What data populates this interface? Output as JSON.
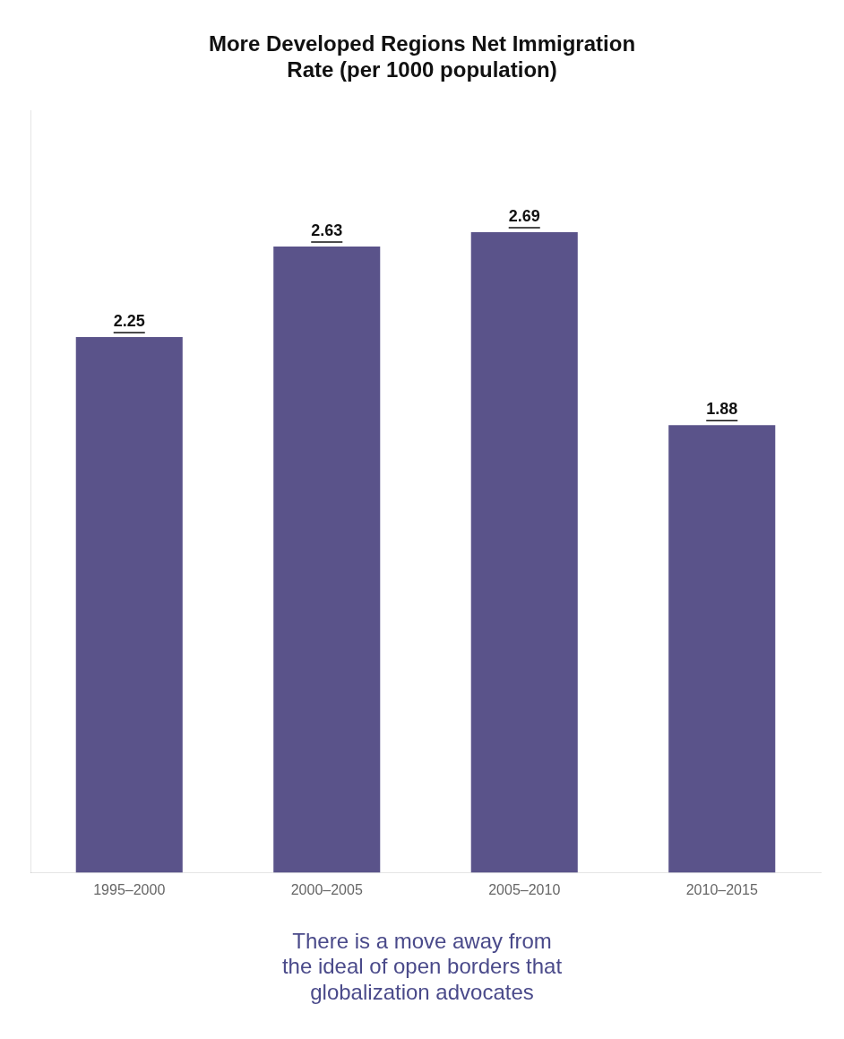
{
  "chart_data": {
    "type": "bar",
    "title": "More Developed Regions Net Immigration\nRate (per 1000 population)",
    "subtitle": "There is a move away from\nthe ideal of open borders that\nglobalization advocates",
    "categories": [
      "1995–2000",
      "2000–2005",
      "2005–2010",
      "2010–2015"
    ],
    "values": [
      2.25,
      2.63,
      2.69,
      1.88
    ],
    "color": "#5a538a",
    "ylim": [
      0,
      3.2
    ],
    "grid": false,
    "data_labels": true,
    "tick_labels": "x"
  }
}
